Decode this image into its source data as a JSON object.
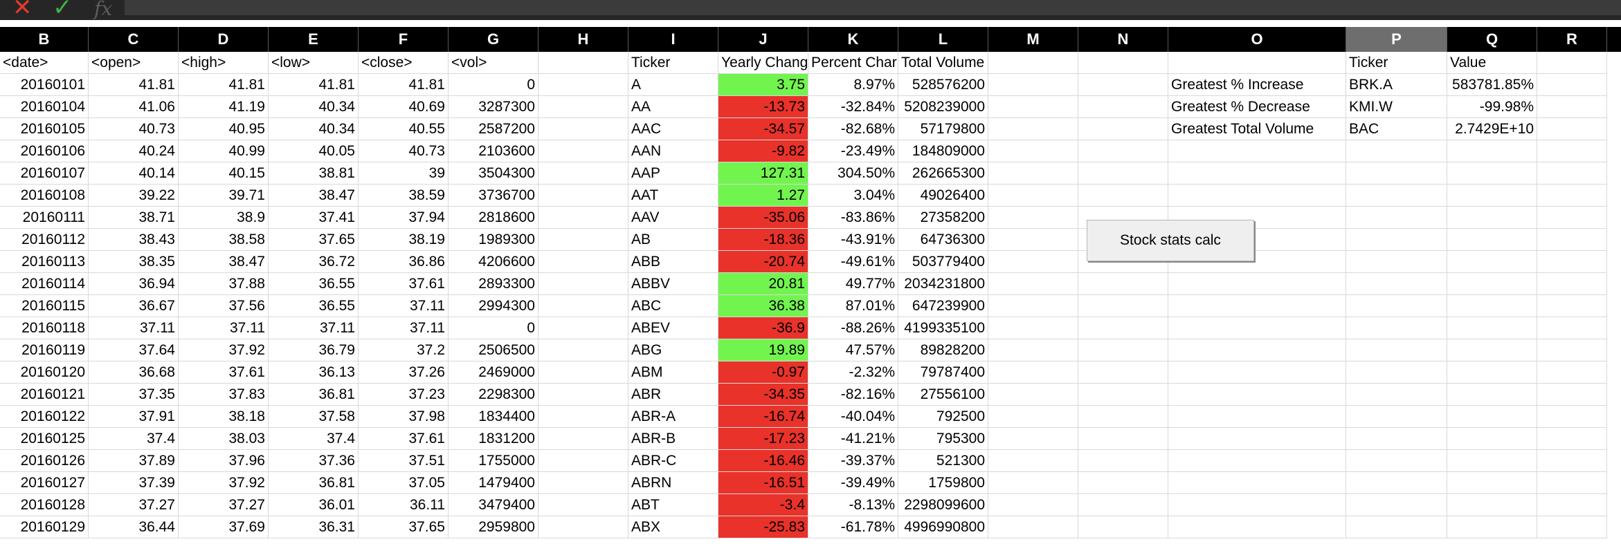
{
  "toolbar": {
    "cancel_icon": "x-icon",
    "cancel_color": "#e23a2c",
    "confirm_icon": "check-icon",
    "confirm_color": "#3fb24a",
    "fx_label": "fx",
    "formula": ""
  },
  "columns": [
    "B",
    "C",
    "D",
    "E",
    "F",
    "G",
    "H",
    "I",
    "J",
    "K",
    "L",
    "M",
    "N",
    "O",
    "P",
    "Q",
    "R"
  ],
  "selected_column": "P",
  "colors": {
    "positive": "#72f44f",
    "negative": "#e8322a",
    "header_bg": "#000000",
    "selected_header": "#6e6e6e"
  },
  "sheet": {
    "headers": {
      "date": "<date>",
      "open": "<open>",
      "high": "<high>",
      "low": "<low>",
      "close": "<close>",
      "vol": "<vol>",
      "ticker": "Ticker",
      "yearly_change": "Yearly Chang",
      "percent_change": "Percent Char",
      "total_volume": "Total Volume",
      "summary_ticker": "Ticker",
      "summary_value": "Value"
    },
    "prices": [
      {
        "date": "20160101",
        "open": "41.81",
        "high": "41.81",
        "low": "41.81",
        "close": "41.81",
        "vol": "0"
      },
      {
        "date": "20160104",
        "open": "41.06",
        "high": "41.19",
        "low": "40.34",
        "close": "40.69",
        "vol": "3287300"
      },
      {
        "date": "20160105",
        "open": "40.73",
        "high": "40.95",
        "low": "40.34",
        "close": "40.55",
        "vol": "2587200"
      },
      {
        "date": "20160106",
        "open": "40.24",
        "high": "40.99",
        "low": "40.05",
        "close": "40.73",
        "vol": "2103600"
      },
      {
        "date": "20160107",
        "open": "40.14",
        "high": "40.15",
        "low": "38.81",
        "close": "39",
        "vol": "3504300"
      },
      {
        "date": "20160108",
        "open": "39.22",
        "high": "39.71",
        "low": "38.47",
        "close": "38.59",
        "vol": "3736700"
      },
      {
        "date": "20160111",
        "open": "38.71",
        "high": "38.9",
        "low": "37.41",
        "close": "37.94",
        "vol": "2818600"
      },
      {
        "date": "20160112",
        "open": "38.43",
        "high": "38.58",
        "low": "37.65",
        "close": "38.19",
        "vol": "1989300"
      },
      {
        "date": "20160113",
        "open": "38.35",
        "high": "38.47",
        "low": "36.72",
        "close": "36.86",
        "vol": "4206600"
      },
      {
        "date": "20160114",
        "open": "36.94",
        "high": "37.88",
        "low": "36.55",
        "close": "37.61",
        "vol": "2893300"
      },
      {
        "date": "20160115",
        "open": "36.67",
        "high": "37.56",
        "low": "36.55",
        "close": "37.11",
        "vol": "2994300"
      },
      {
        "date": "20160118",
        "open": "37.11",
        "high": "37.11",
        "low": "37.11",
        "close": "37.11",
        "vol": "0"
      },
      {
        "date": "20160119",
        "open": "37.64",
        "high": "37.92",
        "low": "36.79",
        "close": "37.2",
        "vol": "2506500"
      },
      {
        "date": "20160120",
        "open": "36.68",
        "high": "37.61",
        "low": "36.13",
        "close": "37.26",
        "vol": "2469000"
      },
      {
        "date": "20160121",
        "open": "37.35",
        "high": "37.83",
        "low": "36.81",
        "close": "37.23",
        "vol": "2298300"
      },
      {
        "date": "20160122",
        "open": "37.91",
        "high": "38.18",
        "low": "37.58",
        "close": "37.98",
        "vol": "1834400"
      },
      {
        "date": "20160125",
        "open": "37.4",
        "high": "38.03",
        "low": "37.4",
        "close": "37.61",
        "vol": "1831200"
      },
      {
        "date": "20160126",
        "open": "37.89",
        "high": "37.96",
        "low": "37.36",
        "close": "37.51",
        "vol": "1755000"
      },
      {
        "date": "20160127",
        "open": "37.39",
        "high": "37.92",
        "low": "36.81",
        "close": "37.05",
        "vol": "1479400"
      },
      {
        "date": "20160128",
        "open": "37.27",
        "high": "37.27",
        "low": "36.01",
        "close": "36.11",
        "vol": "3479400"
      },
      {
        "date": "20160129",
        "open": "36.44",
        "high": "37.69",
        "low": "36.31",
        "close": "37.65",
        "vol": "2959800"
      }
    ],
    "tickers": [
      {
        "ticker": "A",
        "yearly_change": "3.75",
        "percent_change": "8.97%",
        "total_volume": "528576200",
        "positive": true
      },
      {
        "ticker": "AA",
        "yearly_change": "-13.73",
        "percent_change": "-32.84%",
        "total_volume": "5208239000",
        "positive": false
      },
      {
        "ticker": "AAC",
        "yearly_change": "-34.57",
        "percent_change": "-82.68%",
        "total_volume": "57179800",
        "positive": false
      },
      {
        "ticker": "AAN",
        "yearly_change": "-9.82",
        "percent_change": "-23.49%",
        "total_volume": "184809000",
        "positive": false
      },
      {
        "ticker": "AAP",
        "yearly_change": "127.31",
        "percent_change": "304.50%",
        "total_volume": "262665300",
        "positive": true
      },
      {
        "ticker": "AAT",
        "yearly_change": "1.27",
        "percent_change": "3.04%",
        "total_volume": "49026400",
        "positive": true
      },
      {
        "ticker": "AAV",
        "yearly_change": "-35.06",
        "percent_change": "-83.86%",
        "total_volume": "27358200",
        "positive": false
      },
      {
        "ticker": "AB",
        "yearly_change": "-18.36",
        "percent_change": "-43.91%",
        "total_volume": "64736300",
        "positive": false
      },
      {
        "ticker": "ABB",
        "yearly_change": "-20.74",
        "percent_change": "-49.61%",
        "total_volume": "503779400",
        "positive": false
      },
      {
        "ticker": "ABBV",
        "yearly_change": "20.81",
        "percent_change": "49.77%",
        "total_volume": "2034231800",
        "positive": true
      },
      {
        "ticker": "ABC",
        "yearly_change": "36.38",
        "percent_change": "87.01%",
        "total_volume": "647239900",
        "positive": true
      },
      {
        "ticker": "ABEV",
        "yearly_change": "-36.9",
        "percent_change": "-88.26%",
        "total_volume": "4199335100",
        "positive": false
      },
      {
        "ticker": "ABG",
        "yearly_change": "19.89",
        "percent_change": "47.57%",
        "total_volume": "89828200",
        "positive": true
      },
      {
        "ticker": "ABM",
        "yearly_change": "-0.97",
        "percent_change": "-2.32%",
        "total_volume": "79787400",
        "positive": false
      },
      {
        "ticker": "ABR",
        "yearly_change": "-34.35",
        "percent_change": "-82.16%",
        "total_volume": "27556100",
        "positive": false
      },
      {
        "ticker": "ABR-A",
        "yearly_change": "-16.74",
        "percent_change": "-40.04%",
        "total_volume": "792500",
        "positive": false
      },
      {
        "ticker": "ABR-B",
        "yearly_change": "-17.23",
        "percent_change": "-41.21%",
        "total_volume": "795300",
        "positive": false
      },
      {
        "ticker": "ABR-C",
        "yearly_change": "-16.46",
        "percent_change": "-39.37%",
        "total_volume": "521300",
        "positive": false
      },
      {
        "ticker": "ABRN",
        "yearly_change": "-16.51",
        "percent_change": "-39.49%",
        "total_volume": "1759800",
        "positive": false
      },
      {
        "ticker": "ABT",
        "yearly_change": "-3.4",
        "percent_change": "-8.13%",
        "total_volume": "2298099600",
        "positive": false
      },
      {
        "ticker": "ABX",
        "yearly_change": "-25.83",
        "percent_change": "-61.78%",
        "total_volume": "4996990800",
        "positive": false
      }
    ],
    "summary": [
      {
        "label": "Greatest % Increase",
        "ticker": "BRK.A",
        "value": "583781.85%"
      },
      {
        "label": "Greatest % Decrease",
        "ticker": "KMI.W",
        "value": "-99.98%"
      },
      {
        "label": "Greatest Total Volume",
        "ticker": "BAC",
        "value": "2.7429E+10"
      }
    ]
  },
  "button": {
    "label": "Stock stats calc"
  }
}
